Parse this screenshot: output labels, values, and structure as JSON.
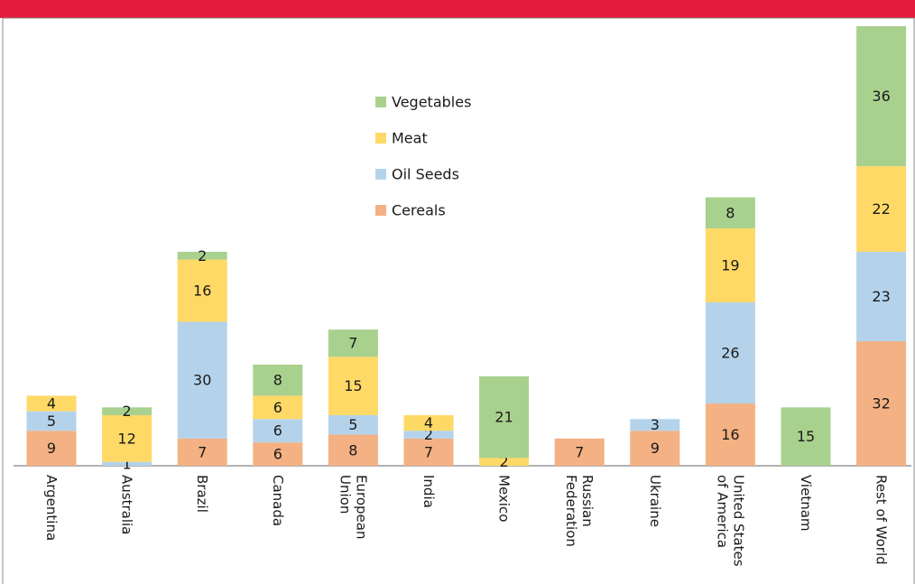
{
  "chart_data": {
    "type": "stacked_bar",
    "categories": [
      "Argentina",
      "Australia",
      "Brazil",
      "Canada",
      "European\nUnion",
      "India",
      "Mexico",
      "Russian\nFederation",
      "Ukraine",
      "United States\nof America",
      "Vietnam",
      "Rest of World"
    ],
    "series": [
      {
        "name": "Cereals",
        "color": "#f4b183",
        "values": [
          9,
          null,
          7,
          6,
          8,
          7,
          null,
          7,
          9,
          16,
          null,
          32
        ]
      },
      {
        "name": "Oil Seeds",
        "color": "#b4d3eb",
        "values": [
          5,
          1,
          30,
          6,
          5,
          2,
          null,
          null,
          3,
          26,
          null,
          23
        ]
      },
      {
        "name": "Meat",
        "color": "#ffd966",
        "values": [
          4,
          12,
          16,
          6,
          15,
          4,
          2,
          null,
          null,
          19,
          null,
          22
        ]
      },
      {
        "name": "Vegetables",
        "color": "#a9d18e",
        "values": [
          null,
          2,
          2,
          8,
          7,
          null,
          21,
          null,
          null,
          8,
          15,
          36
        ]
      }
    ],
    "legend": "center"
  }
}
